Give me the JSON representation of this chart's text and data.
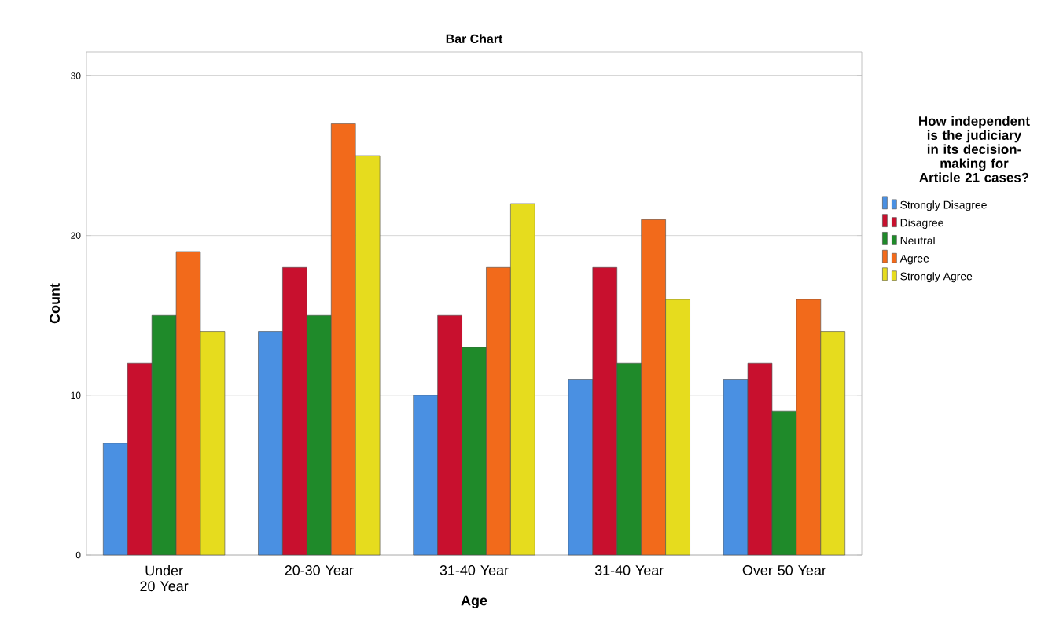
{
  "chart_data": {
    "type": "bar",
    "title": "Bar Chart",
    "xlabel": "Age",
    "ylabel": "Count",
    "legend_title": "How independent is the judiciary in its decision-making for Article 21 cases?",
    "categories": [
      "Under 20 Year",
      "20-30 Year",
      "31-40 Year",
      "31-40 Year",
      "Over 50 Year"
    ],
    "series": [
      {
        "name": "Strongly Disagree",
        "color": "#4a90e2",
        "values": [
          7,
          14,
          10,
          11,
          11
        ]
      },
      {
        "name": "Disagree",
        "color": "#c8102e",
        "values": [
          12,
          18,
          15,
          18,
          12
        ]
      },
      {
        "name": "Neutral",
        "color": "#1f8a2a",
        "values": [
          15,
          15,
          13,
          12,
          9
        ]
      },
      {
        "name": "Agree",
        "color": "#f26a1b",
        "values": [
          19,
          27,
          18,
          21,
          16
        ]
      },
      {
        "name": "Strongly Agree",
        "color": "#e6dc1e",
        "values": [
          14,
          25,
          22,
          16,
          14
        ]
      }
    ],
    "ylim": [
      0,
      31.5
    ],
    "yticks": [
      0,
      10,
      20,
      30
    ],
    "grid": "y",
    "legend": "right"
  }
}
